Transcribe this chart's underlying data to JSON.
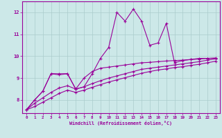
{
  "background_color": "#cce8e8",
  "grid_color": "#aacccc",
  "line_color": "#990099",
  "xlabel": "Windchill (Refroidissement éolien,°C)",
  "xlim": [
    -0.5,
    23.5
  ],
  "ylim": [
    7.4,
    12.5
  ],
  "yticks": [
    8,
    9,
    10,
    11,
    12
  ],
  "xticks": [
    0,
    1,
    2,
    3,
    4,
    5,
    6,
    7,
    8,
    9,
    10,
    11,
    12,
    13,
    14,
    15,
    16,
    17,
    18,
    19,
    20,
    21,
    22,
    23
  ],
  "series1_x": [
    0,
    1,
    2,
    3,
    4,
    5,
    6,
    7,
    8,
    9,
    10,
    11,
    12,
    13,
    14,
    15,
    16,
    17,
    18,
    19,
    20,
    21,
    22,
    23
  ],
  "series1_y": [
    7.55,
    8.0,
    8.4,
    9.2,
    9.2,
    9.2,
    8.5,
    8.6,
    9.2,
    9.9,
    10.4,
    12.0,
    11.6,
    12.15,
    11.6,
    10.5,
    10.6,
    11.5,
    9.7,
    9.8,
    9.85,
    9.9,
    9.9,
    9.9
  ],
  "series2_x": [
    0,
    1,
    2,
    3,
    4,
    5,
    6,
    7,
    8,
    9,
    10,
    11,
    12,
    13,
    14,
    15,
    16,
    17,
    18,
    19,
    20,
    21,
    22,
    23
  ],
  "series2_y": [
    7.55,
    8.0,
    8.4,
    9.2,
    9.15,
    9.2,
    8.5,
    9.0,
    9.3,
    9.45,
    9.5,
    9.55,
    9.6,
    9.65,
    9.7,
    9.72,
    9.75,
    9.78,
    9.8,
    9.82,
    9.85,
    9.87,
    9.9,
    9.92
  ],
  "series3_x": [
    0,
    1,
    2,
    3,
    4,
    5,
    6,
    7,
    8,
    9,
    10,
    11,
    12,
    13,
    14,
    15,
    16,
    17,
    18,
    19,
    20,
    21,
    22,
    23
  ],
  "series3_y": [
    7.55,
    7.85,
    8.1,
    8.35,
    8.55,
    8.65,
    8.5,
    8.6,
    8.75,
    8.88,
    9.0,
    9.1,
    9.2,
    9.3,
    9.4,
    9.45,
    9.5,
    9.55,
    9.6,
    9.65,
    9.7,
    9.75,
    9.82,
    9.88
  ],
  "series4_x": [
    0,
    1,
    2,
    3,
    4,
    5,
    6,
    7,
    8,
    9,
    10,
    11,
    12,
    13,
    14,
    15,
    16,
    17,
    18,
    19,
    20,
    21,
    22,
    23
  ],
  "series4_y": [
    7.55,
    7.7,
    7.9,
    8.1,
    8.3,
    8.45,
    8.35,
    8.45,
    8.58,
    8.7,
    8.82,
    8.92,
    9.02,
    9.12,
    9.22,
    9.3,
    9.37,
    9.42,
    9.48,
    9.52,
    9.58,
    9.63,
    9.7,
    9.77
  ]
}
